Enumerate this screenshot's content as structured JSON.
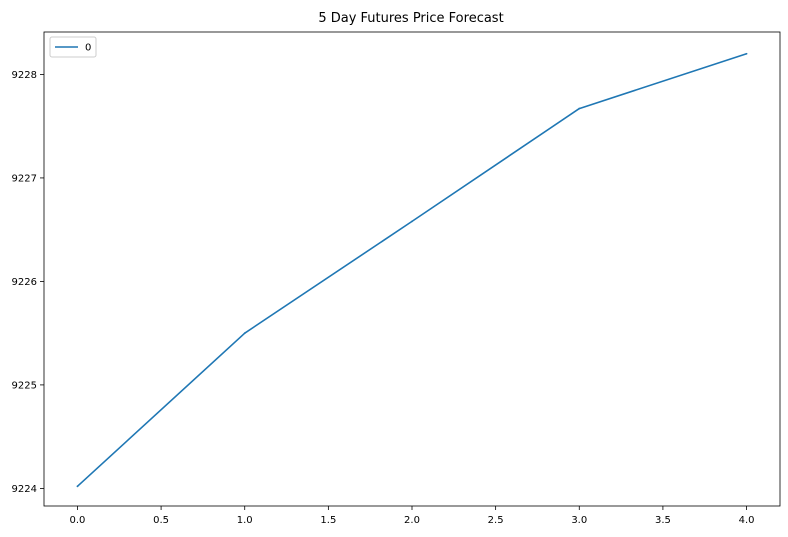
{
  "chart_data": {
    "type": "line",
    "title": "5 Day Futures Price Forecast",
    "xlabel": "",
    "ylabel": "",
    "x": [
      0.0,
      1.0,
      2.0,
      3.0,
      4.0
    ],
    "series": [
      {
        "name": "0",
        "values": [
          9224.02,
          9225.5,
          9226.58,
          9227.67,
          9228.2
        ],
        "color": "#1f77b4"
      }
    ],
    "xlim": [
      -0.2,
      4.2
    ],
    "ylim": [
      9223.83,
      9228.41
    ],
    "x_ticks": [
      0.0,
      0.5,
      1.0,
      1.5,
      2.0,
      2.5,
      3.0,
      3.5,
      4.0
    ],
    "x_tick_labels": [
      "0.0",
      "0.5",
      "1.0",
      "1.5",
      "2.0",
      "2.5",
      "3.0",
      "3.5",
      "4.0"
    ],
    "y_ticks": [
      9224,
      9225,
      9226,
      9227,
      9228
    ],
    "y_tick_labels": [
      "9224",
      "9225",
      "9226",
      "9227",
      "9228"
    ],
    "grid": false,
    "legend_position": "upper-left"
  }
}
